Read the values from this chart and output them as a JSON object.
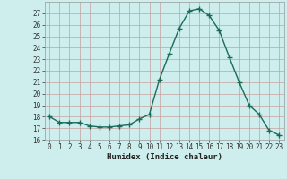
{
  "x": [
    0,
    1,
    2,
    3,
    4,
    5,
    6,
    7,
    8,
    9,
    10,
    11,
    12,
    13,
    14,
    15,
    16,
    17,
    18,
    19,
    20,
    21,
    22,
    23
  ],
  "y": [
    18.0,
    17.5,
    17.5,
    17.5,
    17.2,
    17.1,
    17.1,
    17.2,
    17.3,
    17.8,
    18.2,
    21.2,
    23.5,
    25.7,
    27.2,
    27.4,
    26.8,
    25.5,
    23.2,
    21.0,
    19.0,
    18.2,
    16.8,
    16.4
  ],
  "line_color": "#1a6b5a",
  "marker": "+",
  "bg_color": "#cdeeed",
  "grid_major_color": "#b8c8c8",
  "grid_minor_color": "#d4e4e4",
  "xlabel": "Humidex (Indice chaleur)",
  "ylim": [
    16,
    28
  ],
  "xlim": [
    -0.5,
    23.5
  ],
  "yticks": [
    16,
    17,
    18,
    19,
    20,
    21,
    22,
    23,
    24,
    25,
    26,
    27
  ],
  "xticks": [
    0,
    1,
    2,
    3,
    4,
    5,
    6,
    7,
    8,
    9,
    10,
    11,
    12,
    13,
    14,
    15,
    16,
    17,
    18,
    19,
    20,
    21,
    22,
    23
  ]
}
